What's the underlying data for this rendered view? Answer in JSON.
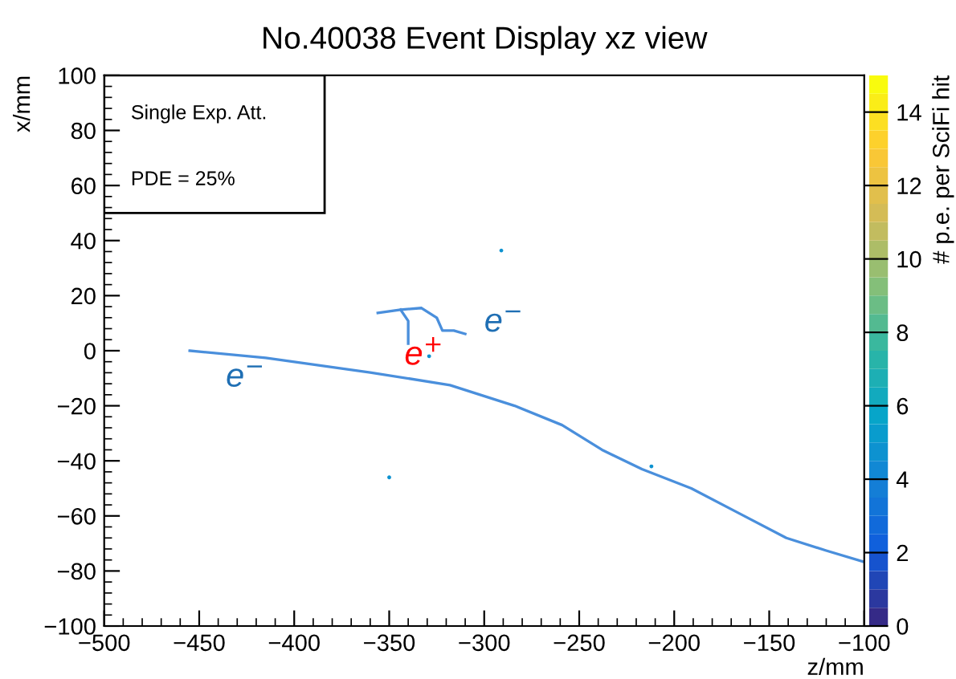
{
  "chart_data": {
    "type": "line",
    "title": "No.40038 Event Display xz view",
    "xlabel": "z/mm",
    "ylabel": "x/mm",
    "clabel": "# p.e. per SciFi hit",
    "xlim": [
      -500,
      -100
    ],
    "xticks": [
      -500,
      -450,
      -400,
      -350,
      -300,
      -250,
      -200,
      -150,
      -100
    ],
    "ylim": [
      -100,
      100
    ],
    "yticks": [
      -100,
      -80,
      -60,
      -40,
      -20,
      0,
      20,
      40,
      60,
      80,
      100
    ],
    "clim": [
      0,
      15
    ],
    "cticks": [
      0,
      2,
      4,
      6,
      8,
      10,
      12,
      14
    ],
    "grid": false,
    "legend": false,
    "series": [
      {
        "color": "#4a8fdc",
        "x": [
          -455,
          -415,
          -360,
          -318,
          -284,
          -259,
          -238,
          -217,
          -191,
          -166,
          -141,
          -120,
          -100
        ],
        "values": [
          0,
          -2.6,
          -7.9,
          -12.5,
          -20,
          -27,
          -36,
          -43,
          -50,
          -59,
          -68,
          -72.6,
          -76.7
        ]
      },
      {
        "color": "#4a8fdc",
        "x": [
          -356,
          -344,
          -333,
          -325,
          -322,
          -316,
          -310
        ],
        "values": [
          13.7,
          14.9,
          15.5,
          12,
          7.3,
          7.3,
          6.1
        ]
      },
      {
        "color": "#4a8fdc",
        "x": [
          -344,
          -340,
          -340
        ],
        "values": [
          14.9,
          10.8,
          2.6
        ]
      },
      {
        "type": "scatter",
        "marker": "circle",
        "x": [
          -291,
          -350,
          -329,
          -212
        ],
        "values": [
          36.4,
          -46,
          -2,
          -42
        ],
        "cvalues": [
          4.5,
          4.5,
          4.5,
          4.5
        ]
      }
    ],
    "annotations": [
      "e$^{−}$",
      "e$^{+}$",
      "e$^{−}$",
      "Single Exp. Att.",
      "PDE = 25%"
    ]
  }
}
